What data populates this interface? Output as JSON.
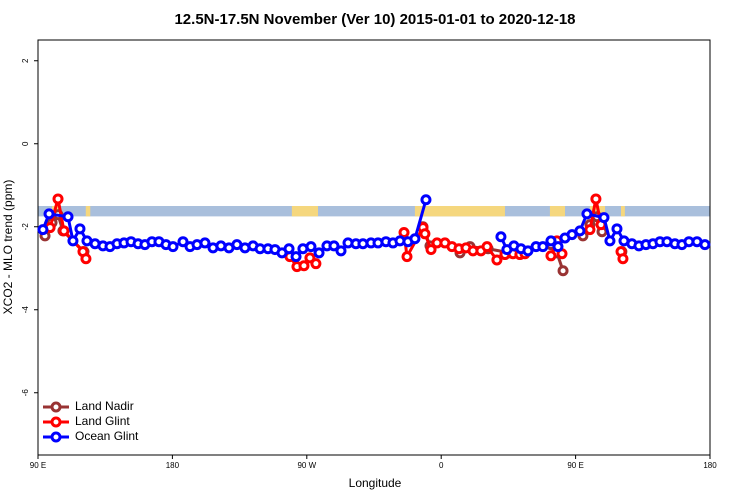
{
  "chart_data": {
    "type": "line",
    "title": "12.5N-17.5N November (Ver 10)   2015-01-01 to 2020-12-18",
    "x_label": "Longitude",
    "y_label": "XCO2 - MLO trend (ppm)",
    "xlim": [
      90,
      540
    ],
    "xticks": [
      {
        "value": 90,
        "label": "90 E"
      },
      180,
      {
        "value": 270,
        "label": "90 W"
      },
      {
        "value": 360,
        "label": "0"
      },
      {
        "value": 450,
        "label": "90 E"
      },
      {
        "value": 540,
        "label": "180"
      }
    ],
    "ylim": [
      -7.5,
      2.5
    ],
    "yticks": [
      2,
      0,
      -2,
      -4,
      -6
    ],
    "legend": "bottomleft",
    "land_band": {
      "ylim": [
        -1.75,
        -1.5
      ],
      "ocean_color": "#a9bfdc",
      "land_color": "#f5d77e",
      "land_ranges": [
        [
          99.4,
          103.4
        ],
        [
          122,
          125
        ],
        [
          260,
          277.5
        ],
        [
          342.4,
          402.7
        ],
        [
          432.8,
          442.9
        ],
        [
          459.6,
          469.7
        ],
        [
          480.4,
          483
        ]
      ]
    },
    "series": [
      {
        "name": "Land Nadir",
        "color": "#993333",
        "x": [
          94.7,
          99.4,
          103.4,
          106.7,
          120.8,
          null,
          347.8,
          352.5,
          null,
          372.6,
          379.3,
          391.4,
          406.1,
          null,
          433.5,
          437.5,
          441.6,
          null,
          454.9,
          459.6,
          464.3,
          467.7,
          null,
          481.0
        ],
        "values": [
          -2.22,
          -1.9,
          -1.71,
          -2.1,
          -2.6,
          null,
          -2.0,
          -2.46,
          null,
          -2.63,
          -2.48,
          -2.53,
          -2.63,
          null,
          -2.43,
          -2.63,
          -3.06,
          null,
          -2.22,
          -1.95,
          -1.76,
          -2.12,
          null,
          -2.6
        ]
      },
      {
        "name": "Land Glint",
        "color": "#ff0000",
        "x": [
          98.1,
          103.4,
          107.4,
          120.1,
          122.1,
          null,
          258.7,
          263.4,
          268.1,
          272.1,
          276.1,
          null,
          335.1,
          337.1,
          347.8,
          349.1,
          353.2,
          357.2,
          362.5,
          367.2,
          371.9,
          376.6,
          381.3,
          386.6,
          390.7,
          397.3,
          402.7,
          408.1,
          412.7,
          416.1,
          null,
          433.5,
          437.5,
          440.9,
          null,
          459.6,
          463.6,
          467.0,
          null,
          480.4,
          481.7
        ],
        "values": [
          -2.02,
          -1.33,
          -2.1,
          -2.6,
          -2.77,
          null,
          -2.72,
          -2.96,
          -2.94,
          -2.75,
          -2.89,
          null,
          -2.14,
          -2.72,
          -2.02,
          -2.17,
          -2.55,
          -2.39,
          -2.39,
          -2.48,
          -2.53,
          -2.51,
          -2.58,
          -2.58,
          -2.48,
          -2.8,
          -2.67,
          -2.65,
          -2.67,
          -2.65,
          null,
          -2.7,
          -2.34,
          -2.65,
          null,
          -2.07,
          -1.33,
          -1.95,
          null,
          -2.6,
          -2.77
        ]
      },
      {
        "name": "Ocean Glint",
        "color": "#0000ff",
        "x": [
          93.3,
          97.4,
          110.1,
          113.4,
          118.1,
          122.8,
          128.2,
          133.5,
          138.2,
          142.9,
          147.6,
          152.3,
          157.0,
          161.6,
          166.3,
          171.0,
          175.7,
          180.4,
          187.1,
          191.8,
          196.5,
          201.8,
          207.2,
          212.5,
          217.9,
          223.2,
          228.6,
          234.0,
          238.7,
          244.0,
          248.7,
          253.4,
          258.1,
          262.8,
          267.4,
          272.8,
          278.2,
          283.5,
          288.2,
          292.9,
          297.6,
          302.9,
          307.6,
          313.0,
          317.7,
          323.0,
          327.7,
          332.4,
          337.7,
          342.4,
          349.8,
          null,
          400.0,
          404.0,
          408.7,
          413.4,
          418.1,
          423.5,
          428.1,
          433.5,
          438.2,
          442.9,
          447.6,
          452.9,
          457.6,
          469.0,
          473.0,
          477.7,
          482.4,
          487.7,
          492.4,
          497.1,
          501.8,
          506.5,
          511.2,
          516.5,
          521.2,
          525.9,
          531.3,
          536.6
        ],
        "values": [
          -2.07,
          -1.69,
          -1.76,
          -2.34,
          -2.05,
          -2.34,
          -2.41,
          -2.46,
          -2.48,
          -2.41,
          -2.39,
          -2.36,
          -2.41,
          -2.43,
          -2.36,
          -2.36,
          -2.43,
          -2.48,
          -2.36,
          -2.48,
          -2.43,
          -2.39,
          -2.51,
          -2.46,
          -2.51,
          -2.43,
          -2.51,
          -2.46,
          -2.53,
          -2.53,
          -2.55,
          -2.63,
          -2.53,
          -2.72,
          -2.53,
          -2.48,
          -2.63,
          -2.46,
          -2.46,
          -2.58,
          -2.39,
          -2.41,
          -2.41,
          -2.39,
          -2.39,
          -2.36,
          -2.39,
          -2.34,
          -2.36,
          -2.29,
          -1.35,
          null,
          -2.24,
          -2.55,
          -2.46,
          -2.53,
          -2.58,
          -2.48,
          -2.48,
          -2.34,
          -2.48,
          -2.27,
          -2.19,
          -2.1,
          -1.69,
          -1.78,
          -2.34,
          -2.05,
          -2.34,
          -2.41,
          -2.46,
          -2.43,
          -2.41,
          -2.36,
          -2.36,
          -2.41,
          -2.43,
          -2.36,
          -2.36,
          -2.43
        ]
      }
    ]
  }
}
